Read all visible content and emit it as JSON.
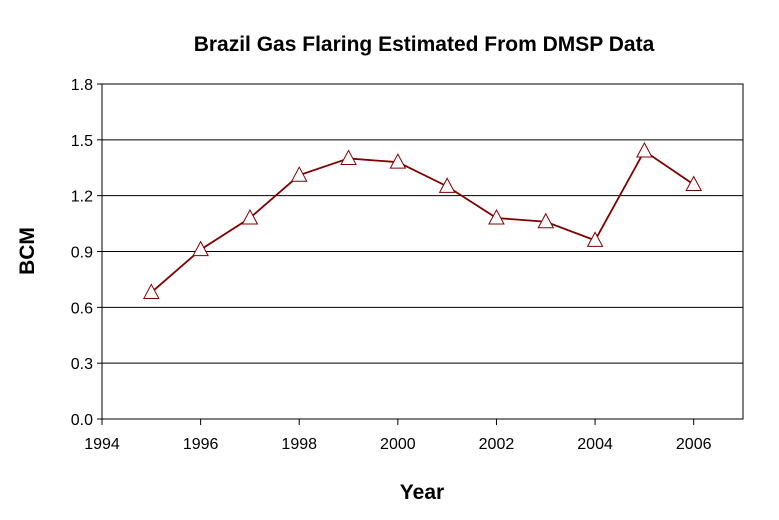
{
  "chart_data": {
    "type": "line",
    "title": "Brazil Gas Flaring Estimated From DMSP Data",
    "xlabel": "Year",
    "ylabel": "BCM",
    "xlim": [
      1994,
      2007
    ],
    "ylim": [
      0,
      1.8
    ],
    "xticks": [
      1994,
      1996,
      1998,
      2000,
      2002,
      2004,
      2006
    ],
    "xtick_labels": [
      "1994",
      "1996",
      "1998",
      "2000",
      "2002",
      "2004",
      "2006"
    ],
    "yticks": [
      0,
      0.3,
      0.6,
      0.9,
      1.2,
      1.5,
      1.8
    ],
    "ytick_labels": [
      "0.0",
      "0.3",
      "0.6",
      "0.9",
      "1.2",
      "1.5",
      "1.8"
    ],
    "grid": "horizontal",
    "legend": "none",
    "series": [
      {
        "x": [
          1995,
          1996,
          1997,
          1998,
          1999,
          2000,
          2001,
          2002,
          2003,
          2004,
          2005,
          2006
        ],
        "values": [
          0.68,
          0.91,
          1.08,
          1.31,
          1.4,
          1.38,
          1.25,
          1.08,
          1.06,
          0.96,
          1.44,
          1.26
        ],
        "line_color": "#800000",
        "marker": "triangle",
        "marker_fill": "#ffffff",
        "marker_stroke": "#800000"
      }
    ]
  }
}
